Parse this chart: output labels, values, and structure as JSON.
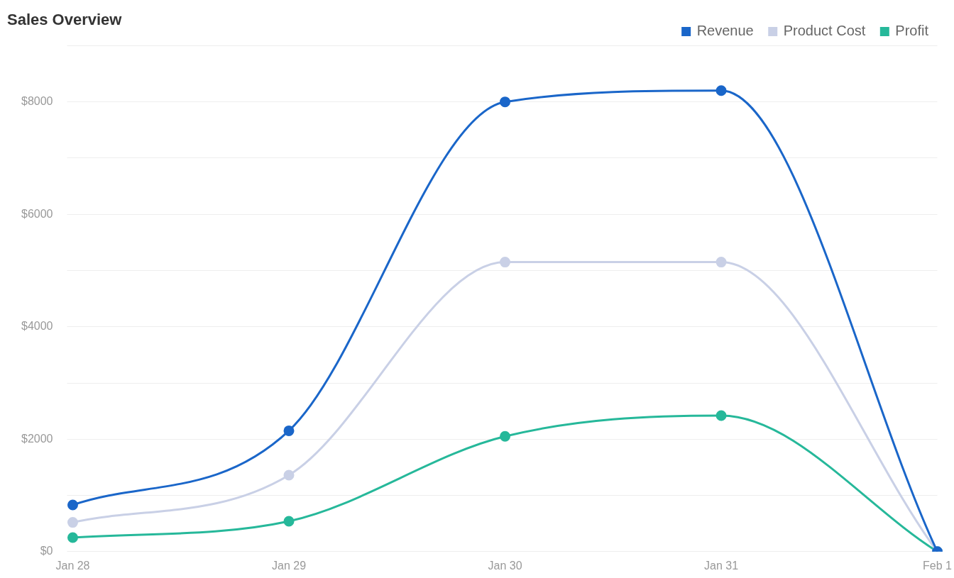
{
  "chart_data": {
    "type": "line",
    "title": "Sales Overview",
    "categories": [
      "Jan 28",
      "Jan 29",
      "Jan 30",
      "Jan 31",
      "Feb 1"
    ],
    "series": [
      {
        "name": "Revenue",
        "color": "#1a66c9",
        "values": [
          830,
          2150,
          8000,
          8200,
          0
        ]
      },
      {
        "name": "Product Cost",
        "color": "#c9d0e6",
        "values": [
          520,
          1360,
          5150,
          5150,
          0
        ]
      },
      {
        "name": "Profit",
        "color": "#26b89a",
        "values": [
          250,
          540,
          2050,
          2420,
          0
        ]
      }
    ],
    "ylim": [
      0,
      9000
    ],
    "yticks": [
      {
        "value": 0,
        "label": "$0"
      },
      {
        "value": 1000,
        "label": null
      },
      {
        "value": 2000,
        "label": "$2000"
      },
      {
        "value": 3000,
        "label": null
      },
      {
        "value": 4000,
        "label": "$4000"
      },
      {
        "value": 5000,
        "label": null
      },
      {
        "value": 6000,
        "label": "$6000"
      },
      {
        "value": 7000,
        "label": null
      },
      {
        "value": 8000,
        "label": "$8000"
      },
      {
        "value": 9000,
        "label": null
      }
    ],
    "grid": "y",
    "legend": "top right",
    "marker": "circle",
    "line_style": "solid"
  }
}
